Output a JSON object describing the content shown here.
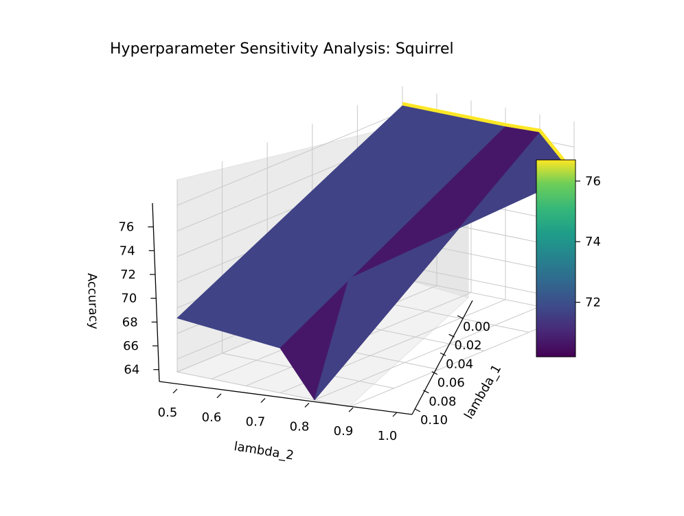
{
  "chart_data": {
    "type": "surface3d",
    "title": "Hyperparameter Sensitivity Analysis: Squirrel",
    "x_axis": {
      "label": "lambda_2",
      "range": [
        0.5,
        1.0
      ],
      "ticks": [
        "0.5",
        "0.6",
        "0.7",
        "0.8",
        "0.9",
        "1.0"
      ]
    },
    "y_axis": {
      "label": "lambda_1",
      "range": [
        0.0,
        0.1
      ],
      "ticks": [
        "0.00",
        "0.02",
        "0.04",
        "0.06",
        "0.08",
        "0.10"
      ]
    },
    "z_axis": {
      "label": "Accuracy",
      "range": [
        63,
        78
      ],
      "ticks": [
        "64",
        "66",
        "68",
        "70",
        "72",
        "74",
        "76"
      ]
    },
    "colormap": "viridis",
    "colorbar": {
      "range": [
        70.2,
        76.7
      ],
      "ticks": [
        "72",
        "74",
        "76"
      ]
    },
    "grid": true,
    "surface": {
      "lambda_2": [
        0.5,
        0.8,
        0.9,
        1.0
      ],
      "lambda_1": [
        0.0,
        0.1
      ],
      "accuracy": [
        [
          76.5,
          67.2
        ],
        [
          76.5,
          66.5
        ],
        [
          76.6,
          63.0
        ],
        [
          73.8,
          73.0
        ]
      ]
    }
  }
}
